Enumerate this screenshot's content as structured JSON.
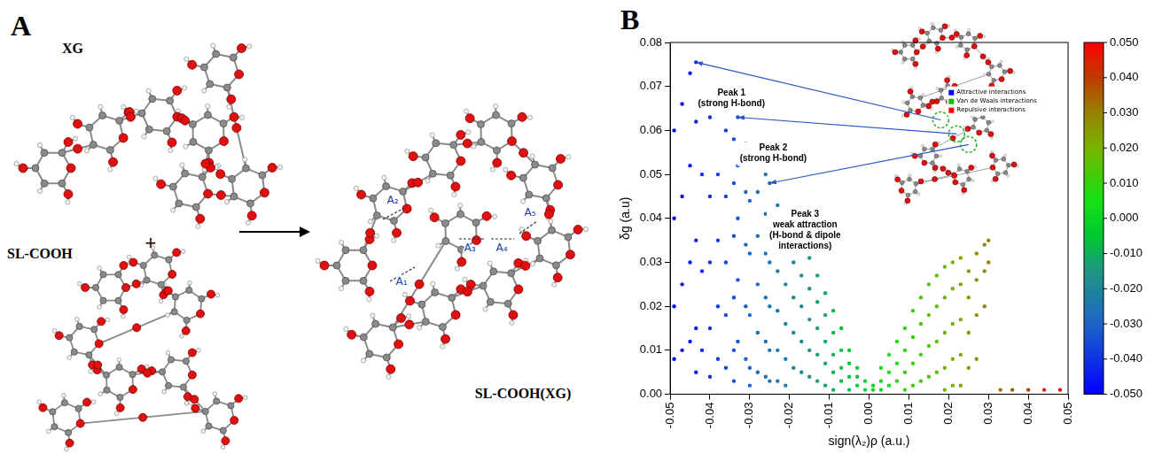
{
  "panels": {
    "A": {
      "label": "A",
      "reactant_1": "XG",
      "operator": "+",
      "reactant_2": "SL-COOH",
      "product": "SL-COOH(XG)",
      "interactions": [
        "A₁",
        "A₂",
        "A₃",
        "A₄",
        "A₅"
      ]
    },
    "B": {
      "label": "B"
    }
  },
  "chart_data": {
    "type": "scatter",
    "x_label": "sign(λ₂)ρ (a.u.)",
    "y_label": "δg (a.u)",
    "marker": "circle",
    "grid": false,
    "x": [
      -0.049,
      -0.049,
      -0.049,
      -0.049,
      -0.047,
      -0.047,
      -0.047,
      -0.047,
      -0.045,
      -0.045,
      -0.045,
      -0.045,
      -0.0435,
      -0.0435,
      -0.0435,
      -0.0435,
      -0.0435,
      -0.042,
      -0.042,
      -0.042,
      -0.042,
      -0.04,
      -0.04,
      -0.04,
      -0.04,
      -0.04,
      -0.038,
      -0.038,
      -0.038,
      -0.038,
      -0.038,
      -0.036,
      -0.036,
      -0.036,
      -0.036,
      -0.036,
      -0.034,
      -0.034,
      -0.034,
      -0.034,
      -0.034,
      -0.034,
      -0.033,
      -0.033,
      -0.033,
      -0.033,
      -0.033,
      -0.031,
      -0.031,
      -0.031,
      -0.031,
      -0.031,
      -0.03,
      -0.03,
      -0.03,
      -0.03,
      -0.03,
      -0.03,
      -0.028,
      -0.028,
      -0.028,
      -0.028,
      -0.028,
      -0.028,
      -0.026,
      -0.026,
      -0.026,
      -0.026,
      -0.026,
      -0.026,
      -0.025,
      -0.025,
      -0.025,
      -0.025,
      -0.025,
      -0.025,
      -0.023,
      -0.023,
      -0.023,
      -0.023,
      -0.023,
      -0.023,
      -0.021,
      -0.021,
      -0.021,
      -0.021,
      -0.021,
      -0.021,
      -0.019,
      -0.019,
      -0.019,
      -0.019,
      -0.019,
      -0.017,
      -0.017,
      -0.017,
      -0.017,
      -0.017,
      -0.015,
      -0.015,
      -0.015,
      -0.015,
      -0.015,
      -0.013,
      -0.013,
      -0.013,
      -0.013,
      -0.013,
      -0.011,
      -0.011,
      -0.011,
      -0.011,
      -0.011,
      -0.009,
      -0.009,
      -0.009,
      -0.009,
      -0.009,
      -0.007,
      -0.007,
      -0.007,
      -0.007,
      -0.005,
      -0.005,
      -0.005,
      -0.005,
      -0.003,
      -0.003,
      -0.003,
      -0.001,
      -0.001,
      0.001,
      0.001,
      0.003,
      0.003,
      0.003,
      0.005,
      0.005,
      0.005,
      0.007,
      0.007,
      0.007,
      0.009,
      0.009,
      0.009,
      0.009,
      0.011,
      0.011,
      0.011,
      0.011,
      0.013,
      0.013,
      0.013,
      0.013,
      0.015,
      0.015,
      0.015,
      0.015,
      0.017,
      0.017,
      0.017,
      0.017,
      0.019,
      0.019,
      0.019,
      0.019,
      0.019,
      0.021,
      0.021,
      0.021,
      0.021,
      0.021,
      0.023,
      0.023,
      0.023,
      0.023,
      0.023,
      0.025,
      0.025,
      0.025,
      0.025,
      0.027,
      0.027,
      0.027,
      0.027,
      0.029,
      0.029,
      0.029,
      0.03,
      0.03,
      0.033,
      0.036,
      0.04,
      0.044,
      0.048
    ],
    "values": [
      0.06,
      0.04,
      0.02,
      0.008,
      0.066,
      0.045,
      0.025,
      0.01,
      0.073,
      0.052,
      0.03,
      0.012,
      0.0755,
      0.062,
      0.035,
      0.015,
      0.005,
      0.068,
      0.05,
      0.028,
      0.01,
      0.063,
      0.045,
      0.03,
      0.015,
      0.004,
      0.066,
      0.05,
      0.035,
      0.02,
      0.008,
      0.06,
      0.045,
      0.03,
      0.018,
      0.006,
      0.058,
      0.048,
      0.036,
      0.022,
      0.01,
      0.003,
      0.063,
      0.052,
      0.04,
      0.026,
      0.012,
      0.057,
      0.046,
      0.034,
      0.02,
      0.008,
      0.054,
      0.044,
      0.032,
      0.018,
      0.006,
      0.002,
      0.055,
      0.046,
      0.036,
      0.025,
      0.014,
      0.005,
      0.05,
      0.041,
      0.032,
      0.022,
      0.012,
      0.004,
      0.048,
      0.04,
      0.03,
      0.02,
      0.01,
      0.003,
      0.043,
      0.036,
      0.028,
      0.019,
      0.01,
      0.003,
      0.04,
      0.033,
      0.025,
      0.016,
      0.008,
      0.002,
      0.037,
      0.03,
      0.022,
      0.014,
      0.006,
      0.034,
      0.027,
      0.02,
      0.012,
      0.005,
      0.031,
      0.024,
      0.017,
      0.01,
      0.004,
      0.027,
      0.021,
      0.015,
      0.009,
      0.003,
      0.023,
      0.018,
      0.012,
      0.007,
      0.002,
      0.019,
      0.014,
      0.009,
      0.005,
      0.001,
      0.015,
      0.01,
      0.006,
      0.003,
      0.01,
      0.007,
      0.004,
      0.001,
      0.006,
      0.004,
      0.002,
      0.003,
      0.001,
      0.002,
      0.001,
      0.006,
      0.003,
      0.001,
      0.009,
      0.005,
      0.002,
      0.012,
      0.007,
      0.003,
      0.015,
      0.01,
      0.005,
      0.001,
      0.019,
      0.013,
      0.007,
      0.002,
      0.022,
      0.016,
      0.009,
      0.003,
      0.025,
      0.018,
      0.011,
      0.004,
      0.027,
      0.02,
      0.012,
      0.005,
      0.029,
      0.022,
      0.014,
      0.006,
      0.001,
      0.03,
      0.024,
      0.016,
      0.008,
      0.002,
      0.031,
      0.025,
      0.017,
      0.009,
      0.002,
      0.028,
      0.022,
      0.014,
      0.006,
      0.032,
      0.026,
      0.018,
      0.008,
      0.034,
      0.028,
      0.02,
      0.035,
      0.03,
      0.001,
      0.001,
      0.001,
      0.001,
      0.001
    ],
    "xlim": [
      -0.05,
      0.05
    ],
    "xticks": [
      -0.05,
      -0.04,
      -0.03,
      -0.02,
      -0.01,
      {
        "value": 0,
        "label": "0.00"
      },
      0.01,
      0.02,
      0.03,
      0.04,
      0.05
    ],
    "ylim": [
      0,
      0.08
    ],
    "yticks": [
      {
        "value": 0,
        "label": "0.00"
      },
      0.01,
      0.02,
      0.03,
      0.04,
      0.05,
      0.06,
      0.07,
      0.08
    ],
    "color_scale": {
      "range": [
        -0.05,
        0.05
      ],
      "ticks": [
        {
          "value": -0.05,
          "label": "-0.050"
        },
        {
          "value": -0.04,
          "label": "-0.040"
        },
        {
          "value": -0.03,
          "label": "-0.030"
        },
        {
          "value": -0.02,
          "label": "-0.020"
        },
        {
          "value": -0.01,
          "label": "-0.010"
        },
        {
          "value": 0,
          "label": "0.000"
        },
        {
          "value": 0.01,
          "label": "0.010"
        },
        {
          "value": 0.02,
          "label": "0.020"
        },
        {
          "value": 0.03,
          "label": "0.030"
        },
        {
          "value": 0.04,
          "label": "0.040"
        },
        {
          "value": 0.05,
          "label": "0.050"
        }
      ]
    },
    "annotations": [
      {
        "text": "Peak 1\n(strong H-bond)",
        "x": -0.0435,
        "y": 0.0755
      },
      {
        "text": "Peak 2\n(strong H-bond)",
        "x": -0.033,
        "y": 0.063
      },
      {
        "text": "Peak 3\nweak attraction\n(H-bond & dipole\ninteractions)",
        "x": -0.025,
        "y": 0.048
      }
    ],
    "inset_legend": [
      {
        "label": "Attractive interactions",
        "color": "#0000ff"
      },
      {
        "label": "Van de Waals interactions",
        "color": "#00c000"
      },
      {
        "label": "Repulsive interactions",
        "color": "#ff0000"
      }
    ]
  }
}
